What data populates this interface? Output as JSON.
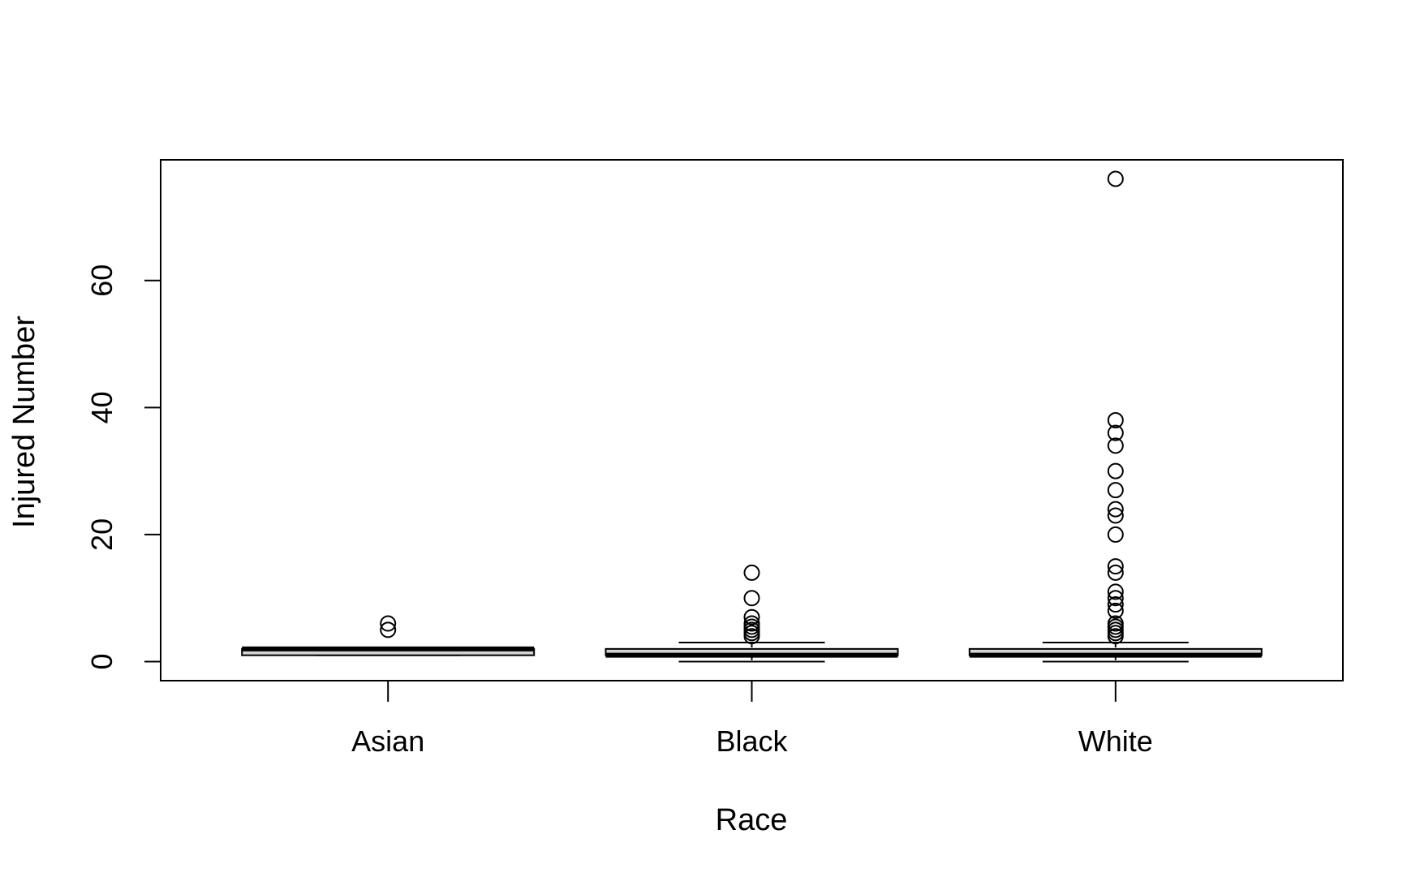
{
  "chart_data": {
    "type": "boxplot",
    "xlabel": "Race",
    "ylabel": "Injured Number",
    "categories": [
      "Asian",
      "Black",
      "White"
    ],
    "ylim": [
      -3,
      79
    ],
    "yticks": [
      0,
      20,
      40,
      60
    ],
    "boxes": [
      {
        "category": "Asian",
        "whisker_low": 1,
        "q1": 1,
        "median": 2,
        "q3": 2,
        "whisker_high": 2,
        "outliers": [
          5,
          6
        ]
      },
      {
        "category": "Black",
        "whisker_low": 0,
        "q1": 1,
        "median": 1,
        "q3": 2,
        "whisker_high": 3,
        "outliers": [
          4,
          4.5,
          5,
          5.5,
          6,
          7,
          10,
          14
        ]
      },
      {
        "category": "White",
        "whisker_low": 0,
        "q1": 1,
        "median": 1,
        "q3": 2,
        "whisker_high": 3,
        "outliers": [
          4,
          4.5,
          5,
          5.5,
          6,
          8,
          9,
          10,
          11,
          14,
          15,
          20,
          23,
          24,
          27,
          30,
          34,
          36,
          38,
          76
        ]
      }
    ],
    "colors": {
      "box_fill": "#d3d3d3",
      "stroke": "#000000"
    }
  }
}
